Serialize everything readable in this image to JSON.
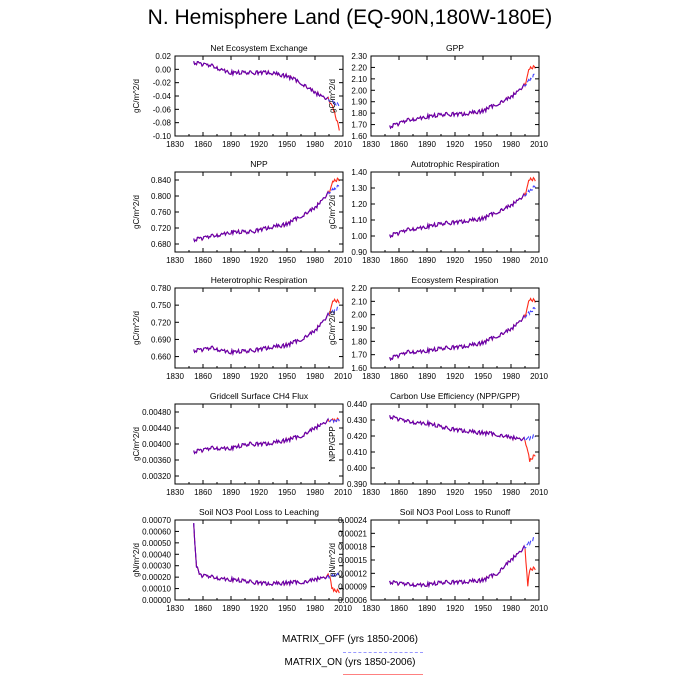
{
  "figure": {
    "title": "N. Hemisphere Land (EQ-90N,180W-180E)",
    "colors": {
      "matrix_off": "#4040ff",
      "matrix_on": "#ff2a1a",
      "axis": "#000000"
    }
  },
  "legend": {
    "entries": [
      {
        "label": "MATRIX_OFF (yrs 1850-2006)",
        "color": "#9999ff",
        "style": "dashed"
      },
      {
        "label": "MATRIX_ON (yrs 1850-2006)",
        "color": "#ff8080",
        "style": "solid"
      }
    ]
  },
  "chart_data": [
    {
      "type": "line",
      "title": "Net Ecosystem Exchange",
      "ylabel": "gC/m^2/d",
      "xlim": [
        1830,
        2010
      ],
      "xticks": [
        1830,
        1860,
        1890,
        1920,
        1950,
        1980,
        2010
      ],
      "ylim": [
        -0.1,
        0.02
      ],
      "yticks": [
        "-0.10",
        "-0.08",
        "-0.06",
        "-0.04",
        "-0.02",
        "0.00",
        "0.02"
      ],
      "series": [
        {
          "name": "MATRIX_OFF",
          "x": [
            1850,
            1870,
            1890,
            1910,
            1930,
            1950,
            1965,
            1980,
            1995,
            2006
          ],
          "values": [
            0.01,
            0.005,
            -0.005,
            -0.005,
            -0.005,
            -0.01,
            -0.02,
            -0.035,
            -0.045,
            -0.055
          ]
        },
        {
          "name": "MATRIX_ON",
          "x": [
            1850,
            1870,
            1890,
            1910,
            1930,
            1950,
            1965,
            1980,
            1995,
            2000,
            2006
          ],
          "values": [
            0.01,
            0.005,
            -0.005,
            -0.005,
            -0.005,
            -0.01,
            -0.02,
            -0.035,
            -0.045,
            -0.06,
            -0.09
          ]
        }
      ]
    },
    {
      "type": "line",
      "title": "GPP",
      "ylabel": "gC/m^2/d",
      "xlim": [
        1830,
        2010
      ],
      "xticks": [
        1830,
        1860,
        1890,
        1920,
        1950,
        1980,
        2010
      ],
      "ylim": [
        1.6,
        2.3
      ],
      "yticks": [
        "1.60",
        "1.70",
        "1.80",
        "1.90",
        "2.00",
        "2.10",
        "2.20",
        "2.30"
      ],
      "series": [
        {
          "name": "MATRIX_OFF",
          "x": [
            1850,
            1870,
            1890,
            1910,
            1930,
            1950,
            1965,
            1980,
            1995,
            2006
          ],
          "values": [
            1.68,
            1.74,
            1.77,
            1.79,
            1.79,
            1.82,
            1.88,
            1.94,
            2.05,
            2.14
          ]
        },
        {
          "name": "MATRIX_ON",
          "x": [
            1850,
            1870,
            1890,
            1910,
            1930,
            1950,
            1965,
            1980,
            1995,
            2000,
            2006
          ],
          "values": [
            1.68,
            1.74,
            1.77,
            1.79,
            1.79,
            1.82,
            1.88,
            1.94,
            2.05,
            2.2,
            2.2
          ]
        }
      ]
    },
    {
      "type": "line",
      "title": "NPP",
      "ylabel": "gC/m^2/d",
      "xlim": [
        1830,
        2010
      ],
      "xticks": [
        1830,
        1860,
        1890,
        1920,
        1950,
        1980,
        2010
      ],
      "ylim": [
        0.66,
        0.86
      ],
      "yticks": [
        "0.680",
        "0.720",
        "0.760",
        "0.800",
        "0.840"
      ],
      "series": [
        {
          "name": "MATRIX_OFF",
          "x": [
            1850,
            1870,
            1890,
            1910,
            1930,
            1950,
            1965,
            1980,
            1995,
            2006
          ],
          "values": [
            0.69,
            0.7,
            0.71,
            0.71,
            0.72,
            0.73,
            0.75,
            0.77,
            0.81,
            0.825
          ]
        },
        {
          "name": "MATRIX_ON",
          "x": [
            1850,
            1870,
            1890,
            1910,
            1930,
            1950,
            1965,
            1980,
            1995,
            2000,
            2006
          ],
          "values": [
            0.69,
            0.7,
            0.71,
            0.71,
            0.72,
            0.73,
            0.75,
            0.77,
            0.81,
            0.84,
            0.84
          ]
        }
      ]
    },
    {
      "type": "line",
      "title": "Autotrophic Respiration",
      "ylabel": "gC/m^2/d",
      "xlim": [
        1830,
        2010
      ],
      "xticks": [
        1830,
        1860,
        1890,
        1920,
        1950,
        1980,
        2010
      ],
      "ylim": [
        0.9,
        1.4
      ],
      "yticks": [
        "0.90",
        "1.00",
        "1.10",
        "1.20",
        "1.30",
        "1.40"
      ],
      "series": [
        {
          "name": "MATRIX_OFF",
          "x": [
            1850,
            1870,
            1890,
            1910,
            1930,
            1950,
            1965,
            1980,
            1995,
            2006
          ],
          "values": [
            1.0,
            1.04,
            1.06,
            1.08,
            1.09,
            1.11,
            1.15,
            1.19,
            1.26,
            1.31
          ]
        },
        {
          "name": "MATRIX_ON",
          "x": [
            1850,
            1870,
            1890,
            1910,
            1930,
            1950,
            1965,
            1980,
            1995,
            2000,
            2006
          ],
          "values": [
            1.0,
            1.04,
            1.06,
            1.08,
            1.09,
            1.11,
            1.15,
            1.19,
            1.26,
            1.36,
            1.35
          ]
        }
      ]
    },
    {
      "type": "line",
      "title": "Heterotrophic Respiration",
      "ylabel": "gC/m^2/d",
      "xlim": [
        1830,
        2010
      ],
      "xticks": [
        1830,
        1860,
        1890,
        1920,
        1950,
        1980,
        2010
      ],
      "ylim": [
        0.64,
        0.78
      ],
      "yticks": [
        "0.660",
        "0.690",
        "0.720",
        "0.750",
        "0.780"
      ],
      "series": [
        {
          "name": "MATRIX_OFF",
          "x": [
            1850,
            1870,
            1890,
            1910,
            1930,
            1950,
            1965,
            1980,
            1995,
            2006
          ],
          "values": [
            0.67,
            0.675,
            0.668,
            0.67,
            0.675,
            0.68,
            0.69,
            0.705,
            0.735,
            0.745
          ]
        },
        {
          "name": "MATRIX_ON",
          "x": [
            1850,
            1870,
            1890,
            1910,
            1930,
            1950,
            1965,
            1980,
            1995,
            2000,
            2006
          ],
          "values": [
            0.67,
            0.675,
            0.668,
            0.67,
            0.675,
            0.68,
            0.69,
            0.705,
            0.735,
            0.76,
            0.755
          ]
        }
      ]
    },
    {
      "type": "line",
      "title": "Ecosystem Respiration",
      "ylabel": "gC/m^2/d",
      "xlim": [
        1830,
        2010
      ],
      "xticks": [
        1830,
        1860,
        1890,
        1920,
        1950,
        1980,
        2010
      ],
      "ylim": [
        1.6,
        2.2
      ],
      "yticks": [
        "1.60",
        "1.70",
        "1.80",
        "1.90",
        "2.00",
        "2.10",
        "2.20"
      ],
      "series": [
        {
          "name": "MATRIX_OFF",
          "x": [
            1850,
            1870,
            1890,
            1910,
            1930,
            1950,
            1965,
            1980,
            1995,
            2006
          ],
          "values": [
            1.67,
            1.72,
            1.73,
            1.75,
            1.76,
            1.79,
            1.84,
            1.89,
            1.99,
            2.05
          ]
        },
        {
          "name": "MATRIX_ON",
          "x": [
            1850,
            1870,
            1890,
            1910,
            1930,
            1950,
            1965,
            1980,
            1995,
            2000,
            2006
          ],
          "values": [
            1.67,
            1.72,
            1.73,
            1.75,
            1.76,
            1.79,
            1.84,
            1.89,
            1.99,
            2.12,
            2.1
          ]
        }
      ]
    },
    {
      "type": "line",
      "title": "Gridcell Surface CH4 Flux",
      "ylabel": "gC/m^2/d",
      "xlim": [
        1830,
        2010
      ],
      "xticks": [
        1830,
        1860,
        1890,
        1920,
        1950,
        1980,
        2010
      ],
      "ylim": [
        0.003,
        0.005
      ],
      "yticks": [
        "0.00320",
        "0.00360",
        "0.00400",
        "0.00440",
        "0.00480"
      ],
      "series": [
        {
          "name": "MATRIX_OFF",
          "x": [
            1850,
            1870,
            1890,
            1910,
            1930,
            1950,
            1965,
            1980,
            1995,
            2006
          ],
          "values": [
            0.0038,
            0.0039,
            0.0039,
            0.004,
            0.004,
            0.0041,
            0.0042,
            0.0044,
            0.0046,
            0.0046
          ]
        },
        {
          "name": "MATRIX_ON",
          "x": [
            1850,
            1870,
            1890,
            1910,
            1930,
            1950,
            1965,
            1980,
            1995,
            2006
          ],
          "values": [
            0.0038,
            0.0039,
            0.0039,
            0.004,
            0.004,
            0.0041,
            0.0042,
            0.0044,
            0.0046,
            0.0046
          ]
        }
      ]
    },
    {
      "type": "line",
      "title": "Carbon Use Efficiency (NPP/GPP)",
      "ylabel": "NPP/GPP",
      "xlim": [
        1830,
        2010
      ],
      "xticks": [
        1830,
        1860,
        1890,
        1920,
        1950,
        1980,
        2010
      ],
      "ylim": [
        0.39,
        0.44
      ],
      "yticks": [
        "0.390",
        "0.400",
        "0.410",
        "0.420",
        "0.430",
        "0.440"
      ],
      "series": [
        {
          "name": "MATRIX_OFF",
          "x": [
            1850,
            1870,
            1890,
            1910,
            1930,
            1950,
            1965,
            1980,
            1995,
            2006
          ],
          "values": [
            0.432,
            0.429,
            0.428,
            0.425,
            0.423,
            0.422,
            0.421,
            0.419,
            0.418,
            0.42
          ]
        },
        {
          "name": "MATRIX_ON",
          "x": [
            1850,
            1870,
            1890,
            1910,
            1930,
            1950,
            1965,
            1980,
            1995,
            2000,
            2006
          ],
          "values": [
            0.432,
            0.429,
            0.428,
            0.425,
            0.423,
            0.422,
            0.421,
            0.419,
            0.418,
            0.405,
            0.408
          ]
        }
      ]
    },
    {
      "type": "line",
      "title": "Soil NO3 Pool Loss to Leaching",
      "ylabel": "gN/m^2/d",
      "xlim": [
        1830,
        2010
      ],
      "xticks": [
        1830,
        1860,
        1890,
        1920,
        1950,
        1980,
        2010
      ],
      "ylim": [
        0.0,
        0.0007
      ],
      "yticks": [
        "0.00000",
        "0.00010",
        "0.00020",
        "0.00030",
        "0.00040",
        "0.00050",
        "0.00060",
        "0.00070"
      ],
      "series": [
        {
          "name": "MATRIX_OFF",
          "x": [
            1850,
            1853,
            1856,
            1870,
            1890,
            1910,
            1930,
            1950,
            1970,
            1990,
            2006
          ],
          "values": [
            0.00066,
            0.0003,
            0.00022,
            0.0002,
            0.00018,
            0.00016,
            0.00014,
            0.00015,
            0.00016,
            0.0002,
            0.00022
          ]
        },
        {
          "name": "MATRIX_ON",
          "x": [
            1850,
            1853,
            1856,
            1870,
            1890,
            1910,
            1930,
            1950,
            1970,
            1990,
            1996,
            1998,
            2006
          ],
          "values": [
            0.00066,
            0.0003,
            0.00022,
            0.0002,
            0.00018,
            0.00016,
            0.00014,
            0.00015,
            0.00016,
            0.0002,
            0.00022,
            0.0001,
            7e-05
          ]
        }
      ]
    },
    {
      "type": "line",
      "title": "Soil NO3 Pool Loss to Runoff",
      "ylabel": "gN/m^2/d",
      "xlim": [
        1830,
        2010
      ],
      "xticks": [
        1830,
        1860,
        1890,
        1920,
        1950,
        1980,
        2010
      ],
      "ylim": [
        6e-05,
        0.00024
      ],
      "yticks": [
        "0.00006",
        "0.00009",
        "0.00012",
        "0.00015",
        "0.00018",
        "0.00021",
        "0.00024"
      ],
      "series": [
        {
          "name": "MATRIX_OFF",
          "x": [
            1850,
            1870,
            1890,
            1910,
            1930,
            1950,
            1965,
            1980,
            1995,
            2006
          ],
          "values": [
            0.0001,
            9.5e-05,
            9.5e-05,
            0.0001,
            0.0001,
            0.000105,
            0.00012,
            0.00015,
            0.00018,
            0.0002
          ]
        },
        {
          "name": "MATRIX_ON",
          "x": [
            1850,
            1870,
            1890,
            1910,
            1930,
            1950,
            1965,
            1980,
            1995,
            1998,
            2000,
            2006
          ],
          "values": [
            0.0001,
            9.5e-05,
            9.5e-05,
            0.0001,
            0.0001,
            0.000105,
            0.00012,
            0.00015,
            0.00018,
            9e-05,
            0.00013,
            0.00013
          ]
        }
      ]
    }
  ]
}
